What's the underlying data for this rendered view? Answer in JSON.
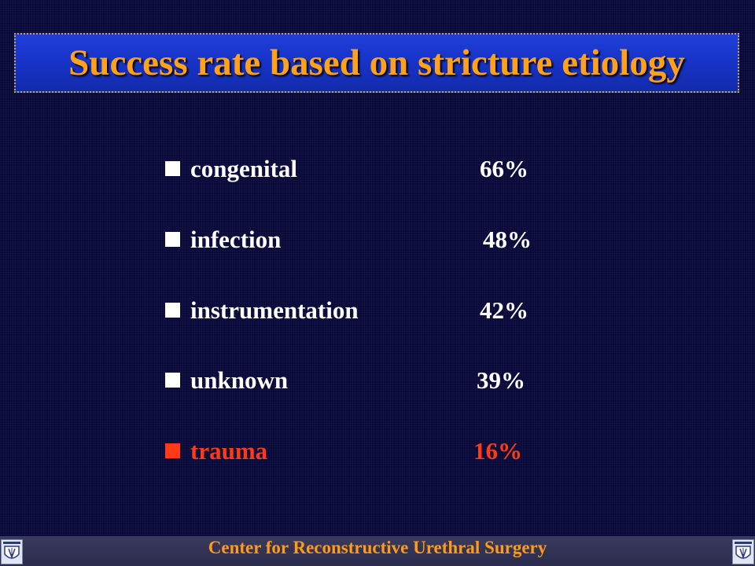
{
  "slide": {
    "title": "Success rate based on stricture etiology",
    "items": [
      {
        "label": "congenital",
        "value": "66%"
      },
      {
        "label": "infection",
        "value": "48%"
      },
      {
        "label": "instrumentation",
        "value": "42%"
      },
      {
        "label": "unknown",
        "value": "39%"
      },
      {
        "label": "trauma",
        "value": "16%"
      }
    ]
  },
  "footer": {
    "text": "Center for Reconstructive Urethral Surgery"
  },
  "colors": {
    "background": "#0a0a3a",
    "title_box": "#1632c4",
    "title_text": "#ffa11a",
    "item_text": "#ffffff",
    "highlight": "#ff3a16",
    "footer_text": "#ff9a1a"
  }
}
